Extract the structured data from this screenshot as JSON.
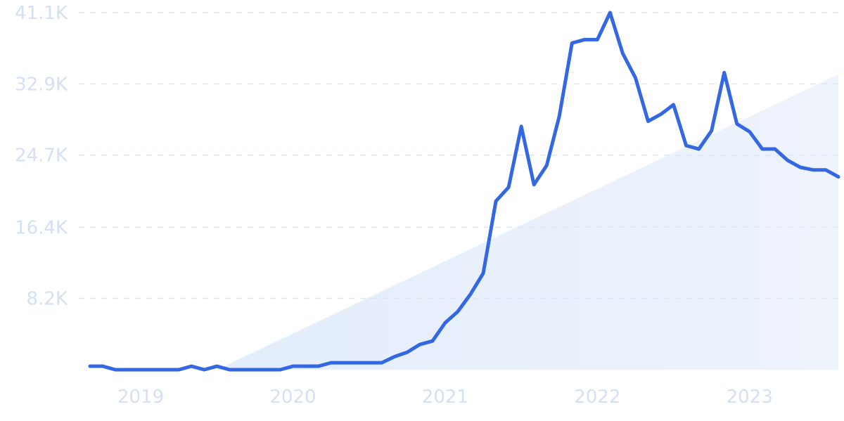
{
  "chart_data": {
    "type": "line",
    "title": "",
    "xlabel": "",
    "ylabel": "",
    "ylim": [
      0,
      41100
    ],
    "xlim": [
      "2018-11",
      "2023-10"
    ],
    "grid": true,
    "legend": "none",
    "y_ticks": [
      "8.2K",
      "16.4K",
      "24.7K",
      "32.9K",
      "41.1K"
    ],
    "y_tick_values": [
      8200,
      16400,
      24700,
      32900,
      41100
    ],
    "x_ticks": [
      "2019",
      "2020",
      "2021",
      "2022",
      "2023"
    ],
    "trend_shading": {
      "from": {
        "x": "2019-09",
        "y": 0
      },
      "to": {
        "x": "2023-10",
        "y": 34000
      },
      "color": "#e3edfb"
    },
    "line_color": "#3467e2",
    "series": [
      {
        "x": [
          "2018-11",
          "2018-12",
          "2019-01",
          "2019-02",
          "2019-03",
          "2019-04",
          "2019-05",
          "2019-06",
          "2019-07",
          "2019-08",
          "2019-09",
          "2019-10",
          "2019-11",
          "2019-12",
          "2020-01",
          "2020-02",
          "2020-03",
          "2020-04",
          "2020-05",
          "2020-06",
          "2020-07",
          "2020-08",
          "2020-09",
          "2020-10",
          "2020-11",
          "2020-12",
          "2021-01",
          "2021-02",
          "2021-03",
          "2021-04",
          "2021-05",
          "2021-06",
          "2021-07",
          "2021-08",
          "2021-09",
          "2021-10",
          "2021-11",
          "2021-12",
          "2022-01",
          "2022-02",
          "2022-03",
          "2022-04",
          "2022-05",
          "2022-06",
          "2022-07",
          "2022-08",
          "2022-09",
          "2022-10",
          "2022-11",
          "2022-12",
          "2023-01",
          "2023-02",
          "2023-03",
          "2023-04",
          "2023-05",
          "2023-06",
          "2023-07",
          "2023-08",
          "2023-09",
          "2023-10"
        ],
        "values": [
          400,
          400,
          0,
          0,
          0,
          0,
          0,
          0,
          400,
          0,
          400,
          0,
          0,
          0,
          0,
          0,
          400,
          400,
          400,
          800,
          800,
          800,
          800,
          800,
          1500,
          2000,
          2900,
          3300,
          5400,
          6700,
          8700,
          11100,
          19400,
          21000,
          28000,
          21300,
          23500,
          29200,
          37600,
          38000,
          38000,
          41100,
          36400,
          33600,
          28600,
          29400,
          30500,
          25800,
          25400,
          27500,
          34200,
          28300,
          27400,
          25400,
          25400,
          24100,
          23300,
          23000,
          23000,
          22200
        ]
      }
    ]
  }
}
